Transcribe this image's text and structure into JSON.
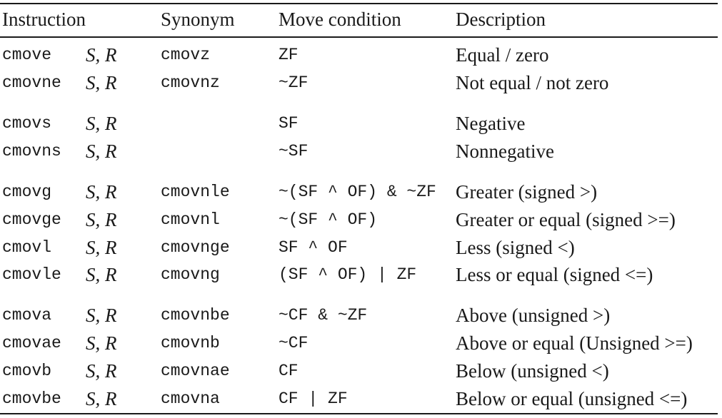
{
  "headers": {
    "instruction": "Instruction",
    "synonym": "Synonym",
    "move_condition": "Move condition",
    "description": "Description"
  },
  "rows": [
    {
      "instruction": "cmove",
      "operands": "S, R",
      "synonym": "cmovz",
      "condition": "ZF",
      "description": "Equal / zero"
    },
    {
      "instruction": "cmovne",
      "operands": "S, R",
      "synonym": "cmovnz",
      "condition": "~ZF",
      "description": "Not equal / not zero"
    },
    {
      "instruction": "cmovs",
      "operands": "S, R",
      "synonym": "",
      "condition": "SF",
      "description": "Negative"
    },
    {
      "instruction": "cmovns",
      "operands": "S, R",
      "synonym": "",
      "condition": "~SF",
      "description": "Nonnegative"
    },
    {
      "instruction": "cmovg",
      "operands": "S, R",
      "synonym": "cmovnle",
      "condition": "~(SF ^ OF) & ~ZF",
      "description": "Greater (signed >)"
    },
    {
      "instruction": "cmovge",
      "operands": "S, R",
      "synonym": "cmovnl",
      "condition": "~(SF ^ OF)",
      "description": "Greater or equal (signed >=)"
    },
    {
      "instruction": "cmovl",
      "operands": "S, R",
      "synonym": "cmovnge",
      "condition": "SF ^ OF",
      "description": "Less (signed <)"
    },
    {
      "instruction": "cmovle",
      "operands": "S, R",
      "synonym": "cmovng",
      "condition": "(SF ^ OF) | ZF",
      "description": "Less or equal (signed <=)"
    },
    {
      "instruction": "cmova",
      "operands": "S, R",
      "synonym": "cmovnbe",
      "condition": "~CF & ~ZF",
      "description": "Above (unsigned >)"
    },
    {
      "instruction": "cmovae",
      "operands": "S, R",
      "synonym": "cmovnb",
      "condition": "~CF",
      "description": "Above or equal (Unsigned >=)"
    },
    {
      "instruction": "cmovb",
      "operands": "S, R",
      "synonym": "cmovnae",
      "condition": "CF",
      "description": "Below (unsigned <)"
    },
    {
      "instruction": "cmovbe",
      "operands": "S, R",
      "synonym": "cmovna",
      "condition": "CF | ZF",
      "description": "Below or equal (unsigned <=)"
    }
  ]
}
